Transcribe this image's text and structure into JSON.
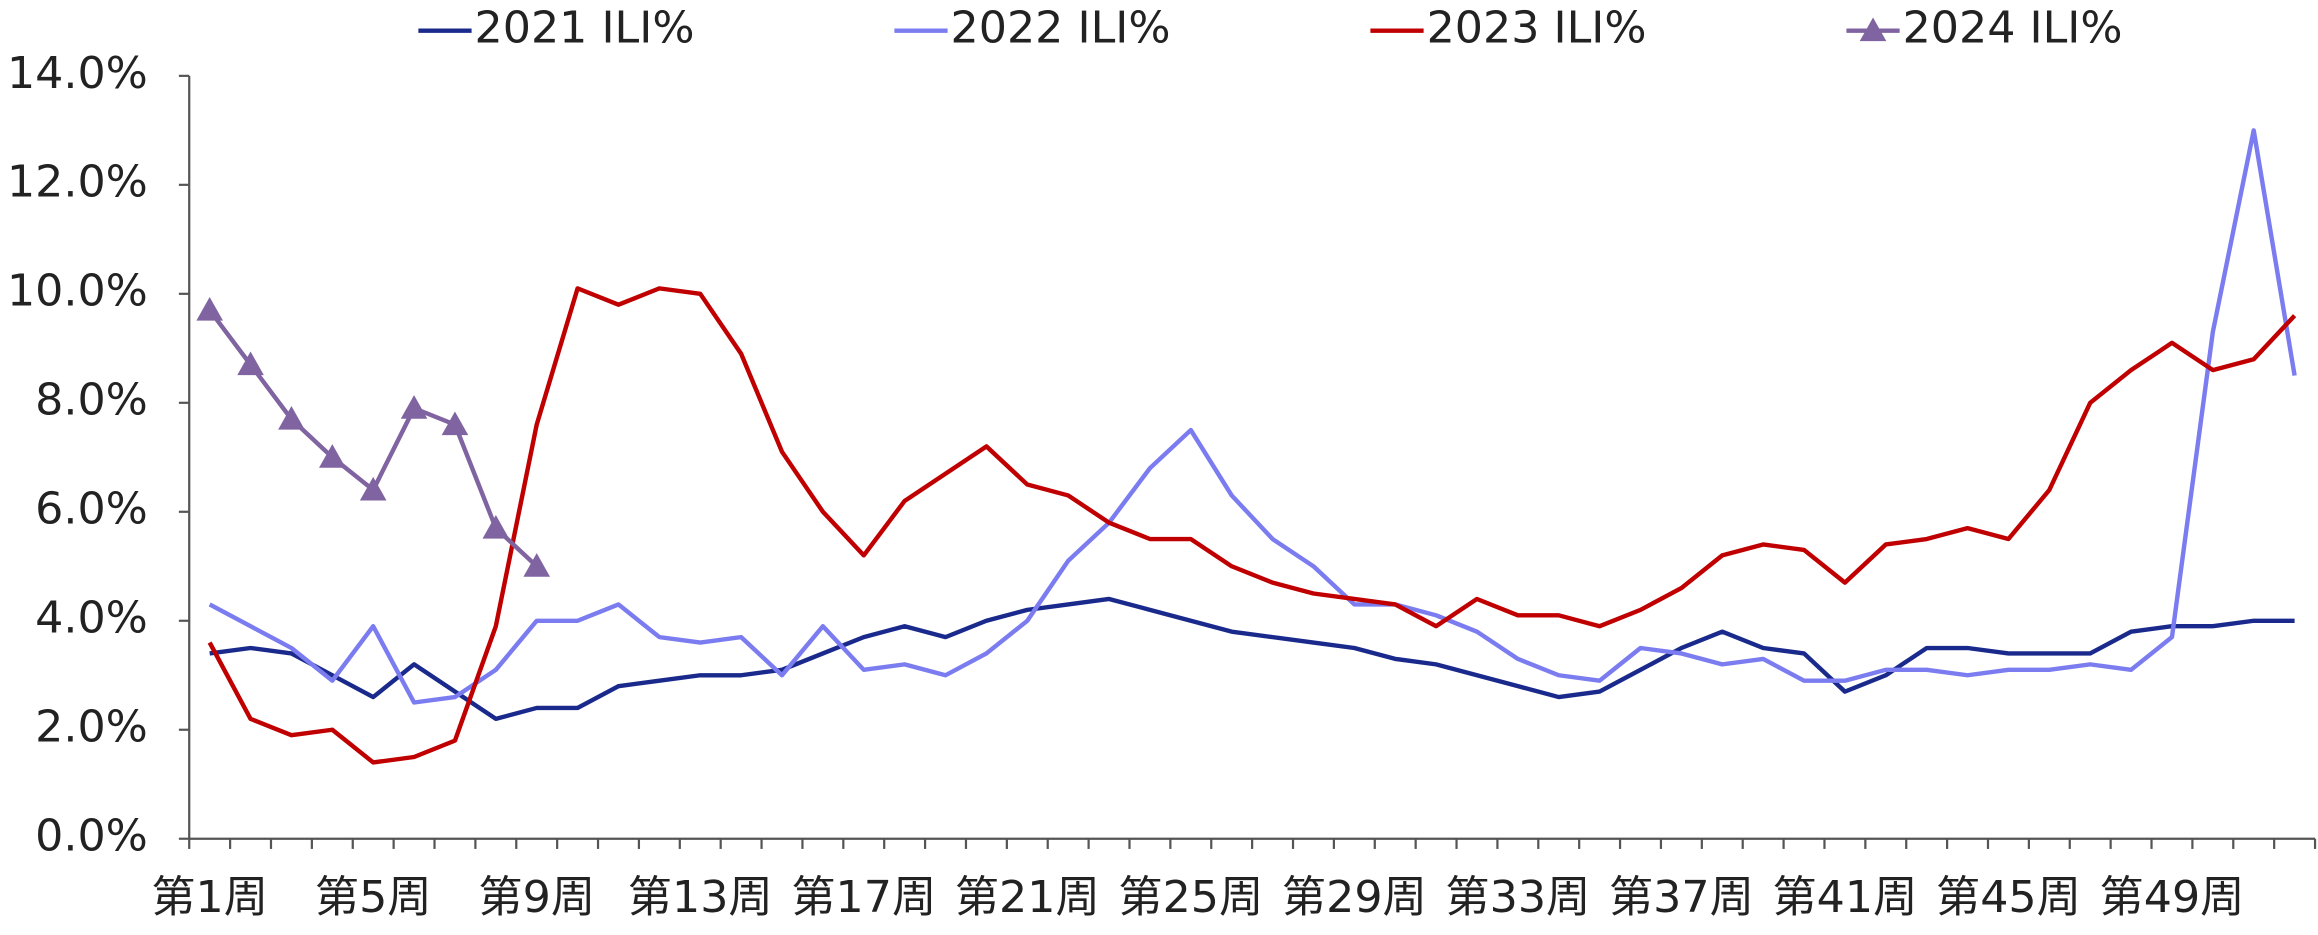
{
  "chart_data": {
    "type": "line",
    "categories": [
      "第1周",
      null,
      null,
      null,
      "第5周",
      null,
      null,
      null,
      "第9周",
      null,
      null,
      null,
      "第13周",
      null,
      null,
      null,
      "第17周",
      null,
      null,
      null,
      "第21周",
      null,
      null,
      null,
      "第25周",
      null,
      null,
      null,
      "第29周",
      null,
      null,
      null,
      "第33周",
      null,
      null,
      null,
      "第37周",
      null,
      null,
      null,
      "第41周",
      null,
      null,
      null,
      "第45周",
      null,
      null,
      null,
      "第49周",
      null,
      null,
      null
    ],
    "series": [
      {
        "name": "2021 ILI%",
        "color": "#1a2a8c",
        "values": [
          3.4,
          3.5,
          3.4,
          3.0,
          2.6,
          3.2,
          2.7,
          2.2,
          2.4,
          2.4,
          2.8,
          2.9,
          3.0,
          3.0,
          3.1,
          3.4,
          3.7,
          3.9,
          3.7,
          4.0,
          4.2,
          4.3,
          4.4,
          4.2,
          4.0,
          3.8,
          3.7,
          3.6,
          3.5,
          3.3,
          3.2,
          3.0,
          2.8,
          2.6,
          2.7,
          3.1,
          3.5,
          3.8,
          3.5,
          3.4,
          2.7,
          3.0,
          3.5,
          3.5,
          3.4,
          3.4,
          3.4,
          3.8,
          3.9,
          3.9,
          4.0,
          4.0
        ]
      },
      {
        "name": "2022 ILI%",
        "color": "#7b7cf0",
        "values": [
          4.3,
          3.9,
          3.5,
          2.9,
          3.9,
          2.5,
          2.6,
          3.1,
          4.0,
          4.0,
          4.3,
          3.7,
          3.6,
          3.7,
          3.0,
          3.9,
          3.1,
          3.2,
          3.0,
          3.4,
          4.0,
          5.1,
          5.8,
          6.8,
          7.5,
          6.3,
          5.5,
          5.0,
          4.3,
          4.3,
          4.1,
          3.8,
          3.3,
          3.0,
          2.9,
          3.5,
          3.4,
          3.2,
          3.3,
          2.9,
          2.9,
          3.1,
          3.1,
          3.0,
          3.1,
          3.1,
          3.2,
          3.1,
          3.7,
          9.3,
          13.0,
          8.5
        ]
      },
      {
        "name": "2023 ILI%",
        "color": "#c00000",
        "values": [
          3.6,
          2.2,
          1.9,
          2.0,
          1.4,
          1.5,
          1.8,
          3.9,
          7.6,
          10.1,
          9.8,
          10.1,
          10.0,
          8.9,
          7.1,
          6.0,
          5.2,
          6.2,
          6.7,
          7.2,
          6.5,
          6.3,
          5.8,
          5.5,
          5.5,
          5.0,
          4.7,
          4.5,
          4.4,
          4.3,
          3.9,
          4.4,
          4.1,
          4.1,
          3.9,
          4.2,
          4.6,
          5.2,
          5.4,
          5.3,
          4.7,
          5.4,
          5.5,
          5.7,
          5.5,
          6.4,
          8.0,
          8.6,
          9.1,
          8.6,
          8.8,
          9.6
        ]
      },
      {
        "name": "2024 ILI%",
        "color": "#8064a2",
        "marker": "triangle",
        "values": [
          9.7,
          8.7,
          7.7,
          7.0,
          6.4,
          7.9,
          7.6,
          5.7,
          5.0,
          null,
          null,
          null,
          null,
          null,
          null,
          null,
          null,
          null,
          null,
          null,
          null,
          null,
          null,
          null,
          null,
          null,
          null,
          null,
          null,
          null,
          null,
          null,
          null,
          null,
          null,
          null,
          null,
          null,
          null,
          null,
          null,
          null,
          null,
          null,
          null,
          null,
          null,
          null,
          null,
          null,
          null,
          null
        ]
      }
    ],
    "ylim": [
      0,
      14
    ],
    "yticks": [
      {
        "value": 0,
        "label": "0.0%"
      },
      {
        "value": 2,
        "label": "2.0%"
      },
      {
        "value": 4,
        "label": "4.0%"
      },
      {
        "value": 6,
        "label": "6.0%"
      },
      {
        "value": 8,
        "label": "8.0%"
      },
      {
        "value": 10,
        "label": "10.0%"
      },
      {
        "value": 12,
        "label": "12.0%"
      },
      {
        "value": 14,
        "label": "14.0%"
      }
    ],
    "legend": "top",
    "grid": false
  }
}
